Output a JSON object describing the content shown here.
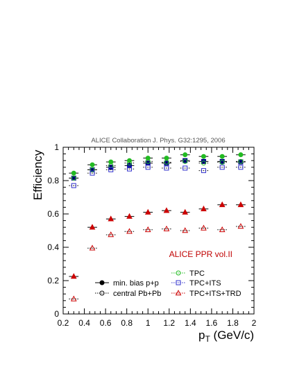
{
  "chart_data": {
    "type": "scatter",
    "header": "ALICE Collaboration   J. Phys. G32:1295, 2006",
    "annotation": "ALICE PPR vol.II",
    "ylabel": "Efficiency",
    "xlabel_main": "p",
    "xlabel_sub": "T",
    "xlabel_unit": " (GeV/c)",
    "xlim": [
      0.2,
      2.0
    ],
    "ylim": [
      0,
      1.0
    ],
    "x_ticks": [
      0.2,
      0.4,
      0.6,
      0.8,
      1.0,
      1.2,
      1.4,
      1.6,
      1.8,
      2.0
    ],
    "x_tick_labels": [
      "0.2",
      "0.4",
      "0.6",
      "0.8",
      "1",
      "1.2",
      "1.4",
      "1.6",
      "1.8",
      "2"
    ],
    "y_ticks": [
      0,
      0.2,
      0.4,
      0.6,
      0.8,
      1.0
    ],
    "y_tick_labels": [
      "0",
      "0.2",
      "0.4",
      "0.6",
      "0.8",
      "1"
    ],
    "bin_half_width": 0.045,
    "x": [
      0.3,
      0.475,
      0.65,
      0.825,
      1.0,
      1.175,
      1.35,
      1.525,
      1.7,
      1.875
    ],
    "series": [
      {
        "name": "TPC",
        "collision": "pp",
        "marker": "circle-filled",
        "color": "#22bb22",
        "values": [
          0.845,
          0.895,
          0.912,
          0.92,
          0.935,
          0.935,
          0.955,
          0.945,
          0.945,
          0.955
        ]
      },
      {
        "name": "TPC+ITS",
        "collision": "pp",
        "marker": "square-filled",
        "color": "#00008b",
        "values": [
          0.815,
          0.865,
          0.88,
          0.89,
          0.905,
          0.905,
          0.92,
          0.915,
          0.915,
          0.912
        ]
      },
      {
        "name": "TPC+ITS+TRD",
        "collision": "pp",
        "marker": "triangle-filled",
        "color": "#cc0000",
        "values": [
          0.225,
          0.52,
          0.57,
          0.585,
          0.61,
          0.62,
          0.61,
          0.63,
          0.655,
          0.655
        ]
      },
      {
        "name": "TPC",
        "collision": "PbPb",
        "marker": "circle-open",
        "color": "#22bb22",
        "values": [
          0.815,
          0.865,
          0.89,
          0.905,
          0.915,
          0.91,
          0.915,
          0.905,
          0.91,
          0.915
        ]
      },
      {
        "name": "TPC+ITS",
        "collision": "PbPb",
        "marker": "square-open",
        "color": "#3030cc",
        "values": [
          0.77,
          0.845,
          0.865,
          0.87,
          0.88,
          0.875,
          0.875,
          0.86,
          0.88,
          0.88
        ]
      },
      {
        "name": "TPC+ITS+TRD",
        "collision": "PbPb",
        "marker": "triangle-open",
        "color": "#cc0000",
        "values": [
          0.09,
          0.395,
          0.475,
          0.495,
          0.505,
          0.51,
          0.5,
          0.515,
          0.505,
          0.525
        ]
      }
    ],
    "legend": {
      "placement": "bottom",
      "collisions": [
        {
          "label": "min. bias p+p",
          "marker": "circle-filled",
          "color": "#000000"
        },
        {
          "label": "central Pb+Pb",
          "marker": "circle-open",
          "color": "#000000"
        }
      ],
      "methods": [
        {
          "label": "TPC",
          "marker": "circle-open",
          "color": "#22bb22"
        },
        {
          "label": "TPC+ITS",
          "marker": "square-open",
          "color": "#3030cc"
        },
        {
          "label": "TPC+ITS+TRD",
          "marker": "triangle-open",
          "color": "#cc0000"
        }
      ]
    }
  }
}
